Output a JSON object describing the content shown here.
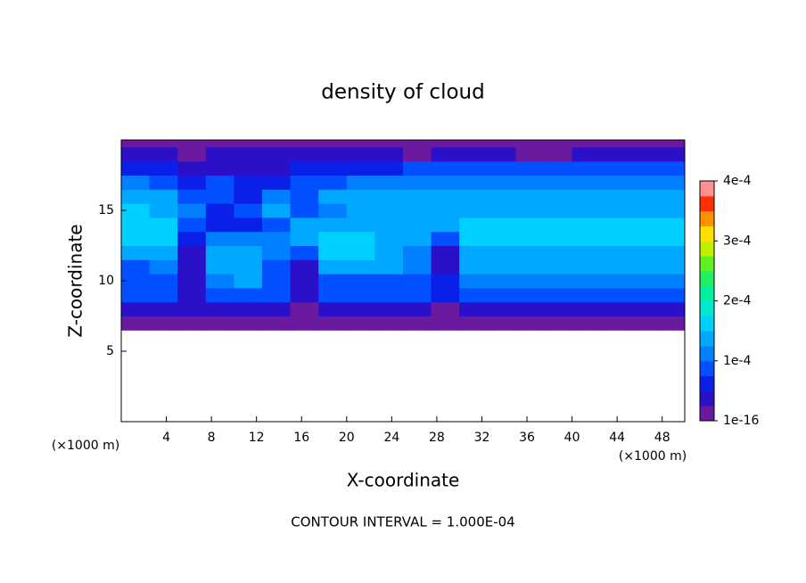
{
  "chart_data": {
    "type": "contourf",
    "title": "density of cloud",
    "xlabel": "X-coordinate",
    "ylabel": "Z-coordinate",
    "x_unit": "(×1000 m)",
    "y_unit": "(×1000 m)",
    "footer": "CONTOUR INTERVAL = 1.000E-04",
    "xlim": [
      0,
      50
    ],
    "ylim": [
      0,
      20
    ],
    "xticks": [
      4,
      8,
      12,
      16,
      20,
      24,
      28,
      32,
      36,
      40,
      44,
      48
    ],
    "yticks": [
      5,
      10,
      15
    ],
    "clim": [
      1e-16,
      0.0004
    ],
    "cticks": [
      {
        "value": 1e-16,
        "label": "1e-16"
      },
      {
        "value": 0.0001,
        "label": "1e-4"
      },
      {
        "value": 0.0002,
        "label": "2e-4"
      },
      {
        "value": 0.0003,
        "label": "3e-4"
      },
      {
        "value": 0.0004,
        "label": "4e-4"
      }
    ],
    "colormap": [
      "#6a1aa0",
      "#2a10c8",
      "#0a20e8",
      "#0050ff",
      "#0080ff",
      "#00a8ff",
      "#00d0ff",
      "#00e8d0",
      "#00f0a0",
      "#20f060",
      "#60f020",
      "#c0f000",
      "#ffe000",
      "#ff9000",
      "#ff3000",
      "#ff9090"
    ],
    "field": {
      "x_edges": [
        0,
        2.5,
        5,
        7.5,
        10,
        12.5,
        15,
        17.5,
        20,
        22.5,
        25,
        27.5,
        30,
        32.5,
        35,
        37.5,
        40,
        42.5,
        45,
        47.5,
        50
      ],
      "z_edges": [
        6.5,
        7.5,
        8.5,
        9.5,
        10.5,
        11.5,
        12.5,
        13.5,
        14.5,
        15.5,
        16.5,
        17.5,
        18.5,
        19.5,
        20
      ],
      "values": [
        [
          1.5e-05,
          1.5e-05,
          1.5e-05,
          1.5e-05,
          1.5e-05,
          1.5e-05,
          1e-05,
          1.5e-05,
          1.5e-05,
          1.5e-05,
          1.5e-05,
          1e-05,
          1.5e-05,
          1.5e-05,
          1.5e-05,
          1.5e-05,
          1.5e-05,
          1.5e-05,
          1.5e-05,
          1.5e-05
        ],
        [
          5e-05,
          5e-05,
          3e-05,
          5e-05,
          5e-05,
          5e-05,
          2e-05,
          5e-05,
          5e-05,
          5e-05,
          5e-05,
          2e-05,
          5e-05,
          5e-05,
          5e-05,
          5e-05,
          5e-05,
          5e-05,
          5e-05,
          5e-05
        ],
        [
          8e-05,
          8e-05,
          4e-05,
          9e-05,
          9e-05,
          8e-05,
          5e-05,
          8e-05,
          8e-05,
          8e-05,
          8e-05,
          6e-05,
          8e-05,
          8e-05,
          8e-05,
          8e-05,
          8e-05,
          8e-05,
          8e-05,
          8e-05
        ],
        [
          9e-05,
          9e-05,
          4e-05,
          0.00012,
          0.00013,
          9e-05,
          5e-05,
          0.0001,
          0.0001,
          0.0001,
          0.0001,
          6e-05,
          0.00011,
          0.00011,
          0.00011,
          0.00011,
          0.00011,
          0.00011,
          0.00011,
          0.00011
        ],
        [
          0.0001,
          0.00012,
          4e-05,
          0.00014,
          0.00014,
          9e-05,
          5e-05,
          0.00013,
          0.00013,
          0.00013,
          0.00012,
          5e-05,
          0.00013,
          0.00013,
          0.00013,
          0.00013,
          0.00013,
          0.00013,
          0.00013,
          0.00013
        ],
        [
          0.00015,
          0.00015,
          5e-05,
          0.00015,
          0.00015,
          0.00012,
          8e-05,
          0.00016,
          0.00016,
          0.00015,
          0.00012,
          5e-05,
          0.00015,
          0.00015,
          0.00015,
          0.00015,
          0.00015,
          0.00015,
          0.00015,
          0.00015
        ],
        [
          0.00017,
          0.00017,
          7e-05,
          0.00011,
          0.00011,
          0.00011,
          0.00015,
          0.00016,
          0.00016,
          0.00015,
          0.00013,
          8e-05,
          0.00016,
          0.00016,
          0.00016,
          0.00016,
          0.00016,
          0.00016,
          0.00016,
          0.00016
        ],
        [
          0.00017,
          0.00017,
          0.0001,
          6e-05,
          6e-05,
          9e-05,
          0.00014,
          0.00014,
          0.00015,
          0.00014,
          0.00013,
          0.00013,
          0.00016,
          0.00016,
          0.00017,
          0.00017,
          0.00017,
          0.00016,
          0.00016,
          0.00016
        ],
        [
          0.00016,
          0.00015,
          0.00011,
          7e-05,
          8e-05,
          0.00013,
          0.0001,
          0.00011,
          0.00015,
          0.00015,
          0.00015,
          0.00015,
          0.00015,
          0.00015,
          0.00015,
          0.00015,
          0.00015,
          0.00015,
          0.00015,
          0.00015
        ],
        [
          0.00014,
          0.00013,
          0.0001,
          0.0001,
          6e-05,
          0.00012,
          9e-05,
          0.00013,
          0.00014,
          0.00014,
          0.00014,
          0.00014,
          0.00014,
          0.00014,
          0.00014,
          0.00014,
          0.00014,
          0.00014,
          0.00014,
          0.00014
        ],
        [
          0.00011,
          0.0001,
          6e-05,
          9e-05,
          6e-05,
          6e-05,
          9e-05,
          0.0001,
          0.00011,
          0.00011,
          0.00012,
          0.00012,
          0.00012,
          0.00012,
          0.00012,
          0.00012,
          0.00012,
          0.00012,
          0.00012,
          0.00012
        ],
        [
          6e-05,
          6e-05,
          3e-05,
          4e-05,
          5e-05,
          5e-05,
          6e-05,
          7e-05,
          7e-05,
          7e-05,
          8e-05,
          8e-05,
          8e-05,
          8e-05,
          8e-05,
          8e-05,
          8e-05,
          8e-05,
          8e-05,
          8e-05
        ],
        [
          3e-05,
          3e-05,
          2e-05,
          3e-05,
          3e-05,
          3e-05,
          3e-05,
          3e-05,
          3e-05,
          3e-05,
          2e-05,
          3e-05,
          3e-05,
          3e-05,
          2e-05,
          2e-05,
          3e-05,
          3e-05,
          3e-05,
          3e-05
        ],
        [
          1e-05,
          1e-05,
          1e-05,
          1e-05,
          1e-05,
          1e-05,
          1e-05,
          1e-05,
          1e-05,
          1e-05,
          1e-05,
          1e-05,
          1e-05,
          1e-05,
          1e-05,
          1e-05,
          1e-05,
          1e-05,
          1e-05,
          1e-05
        ]
      ]
    }
  }
}
